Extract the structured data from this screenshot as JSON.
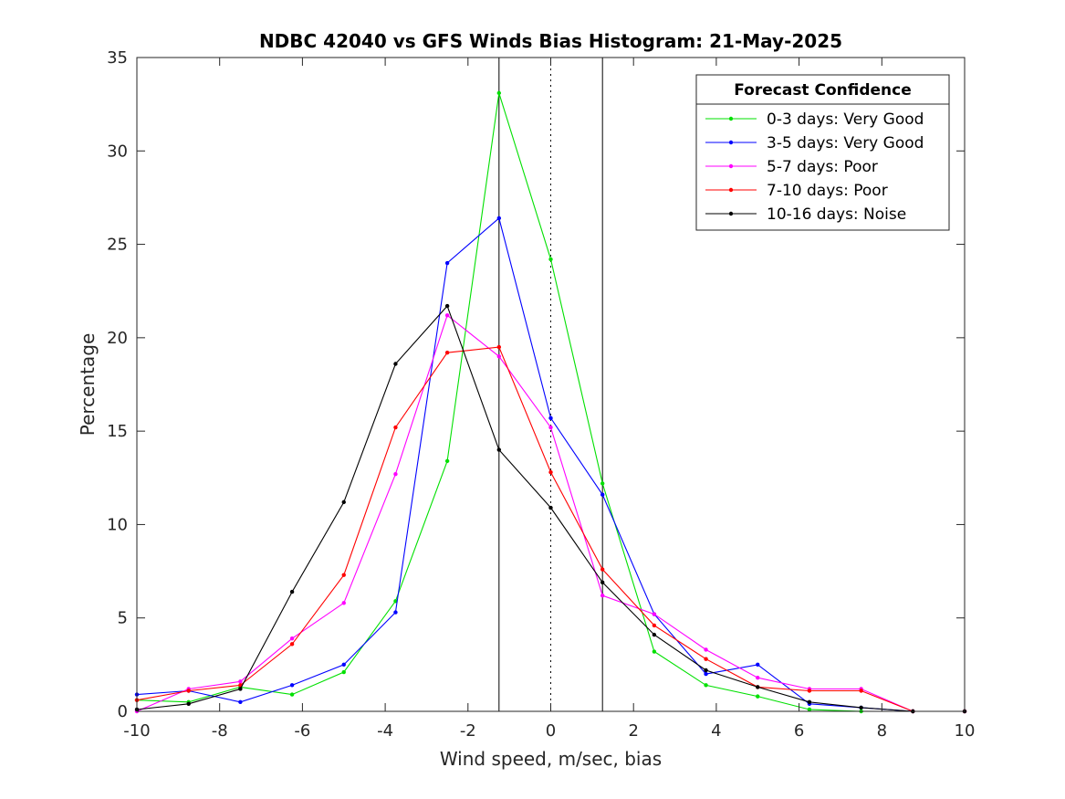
{
  "chart_data": {
    "type": "line",
    "title": "NDBC 42040 vs GFS Winds Bias Histogram: 21-May-2025",
    "xlabel": "Wind speed, m/sec, bias",
    "ylabel": "Percentage",
    "xlim": [
      -10,
      10
    ],
    "ylim": [
      0,
      35
    ],
    "xticks": [
      "-10",
      "-8",
      "-6",
      "-4",
      "-2",
      "0",
      "2",
      "4",
      "6",
      "8",
      "10"
    ],
    "yticks": [
      "0",
      "5",
      "10",
      "15",
      "20",
      "25",
      "30",
      "35"
    ],
    "grid": false,
    "legend_title": "Forecast Confidence",
    "legend_position": "top-right",
    "reference_lines": [
      {
        "x": -1.25,
        "style": "solid"
      },
      {
        "x": 0,
        "style": "dotted"
      },
      {
        "x": 1.25,
        "style": "solid"
      }
    ],
    "x": [
      -10,
      -8.75,
      -7.5,
      -6.25,
      -5,
      -3.75,
      -2.5,
      -1.25,
      0,
      1.25,
      2.5,
      3.75,
      5,
      6.25,
      7.5,
      8.75,
      10
    ],
    "series": [
      {
        "name": "0-3 days: Very Good",
        "color": "#00e000",
        "values": [
          0.6,
          0.5,
          1.3,
          0.9,
          2.1,
          5.9,
          13.4,
          33.1,
          24.2,
          12.2,
          3.2,
          1.4,
          0.8,
          0.1,
          0.0,
          0.0,
          0.0
        ]
      },
      {
        "name": "3-5 days: Very Good",
        "color": "#0000ff",
        "values": [
          0.9,
          1.1,
          0.5,
          1.4,
          2.5,
          5.3,
          24.0,
          26.4,
          15.7,
          11.6,
          5.2,
          2.0,
          2.5,
          0.4,
          0.2,
          0.0,
          0.0
        ]
      },
      {
        "name": "5-7 days: Poor",
        "color": "#ff00ff",
        "values": [
          0.0,
          1.2,
          1.6,
          3.9,
          5.8,
          12.7,
          21.2,
          19.0,
          15.2,
          6.2,
          5.2,
          3.3,
          1.8,
          1.2,
          1.2,
          0.0,
          0.0
        ]
      },
      {
        "name": "7-10 days: Poor",
        "color": "#ff0000",
        "values": [
          0.6,
          1.1,
          1.4,
          3.6,
          7.3,
          15.2,
          19.2,
          19.5,
          12.8,
          7.6,
          4.6,
          2.8,
          1.3,
          1.1,
          1.1,
          0.0,
          0.0
        ]
      },
      {
        "name": "10-16 days: Noise",
        "color": "#000000",
        "values": [
          0.1,
          0.4,
          1.2,
          6.4,
          11.2,
          18.6,
          21.7,
          14.0,
          10.9,
          6.9,
          4.1,
          2.2,
          1.3,
          0.5,
          0.2,
          0.0,
          0.0
        ]
      }
    ]
  }
}
